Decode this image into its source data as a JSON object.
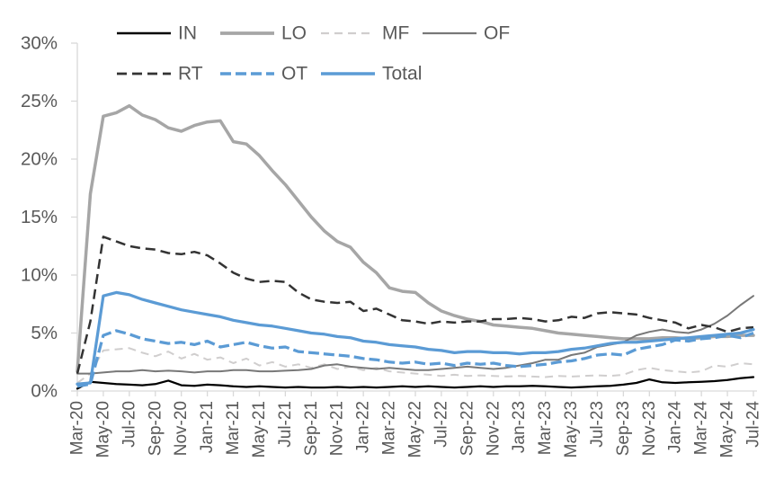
{
  "chart_data": {
    "type": "line",
    "title": "",
    "xlabel": "",
    "ylabel": "",
    "ylim": [
      0,
      30
    ],
    "grid": false,
    "legend_position": "top",
    "y_tick_labels": [
      "0%",
      "5%",
      "10%",
      "15%",
      "20%",
      "25%",
      "30%"
    ],
    "x_tick_labels": [
      "Mar-20",
      "May-20",
      "Jul-20",
      "Sep-20",
      "Nov-20",
      "Jan-21",
      "Mar-21",
      "May-21",
      "Jul-21",
      "Sep-21",
      "Nov-21",
      "Jan-22",
      "Mar-22",
      "May-22",
      "Jul-22",
      "Sep-22",
      "Nov-22",
      "Jan-23",
      "Mar-23",
      "May-23",
      "Jul-23",
      "Sep-23",
      "Nov-23",
      "Jan-24",
      "Mar-24",
      "May-24",
      "Jul-24"
    ],
    "x_months_per_tick": 2,
    "x_points_total": 53,
    "colors": {
      "axis": "#d9d9d9",
      "tick": "#d9d9d9",
      "label_text": "#595959",
      "blue": "#5b9bd5",
      "gray": "#a6a6a6",
      "light_gray": "#d0cece",
      "dark_gray": "#787878",
      "near_black": "#333333",
      "black": "#000000"
    },
    "series": [
      {
        "name": "IN",
        "color": "#000000",
        "style": "solid",
        "dash": "",
        "width": 2.25,
        "values": [
          0.2,
          0.8,
          0.7,
          0.6,
          0.55,
          0.5,
          0.6,
          0.9,
          0.5,
          0.45,
          0.55,
          0.5,
          0.4,
          0.35,
          0.4,
          0.35,
          0.3,
          0.35,
          0.3,
          0.3,
          0.35,
          0.3,
          0.35,
          0.3,
          0.35,
          0.4,
          0.35,
          0.4,
          0.35,
          0.3,
          0.35,
          0.4,
          0.35,
          0.4,
          0.4,
          0.45,
          0.4,
          0.35,
          0.3,
          0.35,
          0.4,
          0.45,
          0.55,
          0.7,
          1.0,
          0.75,
          0.7,
          0.75,
          0.8,
          0.85,
          0.95,
          1.1,
          1.2
        ]
      },
      {
        "name": "LO",
        "color": "#a6a6a6",
        "style": "solid",
        "dash": "",
        "width": 3.5,
        "values": [
          1.7,
          17.0,
          23.7,
          24.0,
          24.6,
          23.8,
          23.4,
          22.7,
          22.4,
          22.9,
          23.2,
          23.3,
          21.5,
          21.3,
          20.3,
          19.0,
          17.8,
          16.4,
          15.0,
          13.8,
          12.9,
          12.4,
          11.1,
          10.2,
          8.9,
          8.6,
          8.5,
          7.6,
          6.9,
          6.5,
          6.2,
          6.0,
          5.7,
          5.6,
          5.5,
          5.4,
          5.2,
          5.0,
          4.9,
          4.8,
          4.7,
          4.6,
          4.5,
          4.5,
          4.5,
          4.6,
          4.6,
          4.5,
          4.6,
          4.7,
          4.7,
          4.8,
          4.8
        ]
      },
      {
        "name": "MF",
        "color": "#d0cece",
        "style": "dashed",
        "dash": "9 6",
        "width": 2,
        "values": [
          0.7,
          1.5,
          3.5,
          3.6,
          3.7,
          3.3,
          3.0,
          3.4,
          2.8,
          3.2,
          2.7,
          2.9,
          2.4,
          2.8,
          2.2,
          2.5,
          2.1,
          2.3,
          2.0,
          2.3,
          1.9,
          2.1,
          1.8,
          2.0,
          1.7,
          1.6,
          1.5,
          1.4,
          1.3,
          1.4,
          1.3,
          1.35,
          1.3,
          1.25,
          1.3,
          1.25,
          1.2,
          1.3,
          1.25,
          1.3,
          1.35,
          1.3,
          1.4,
          1.8,
          2.0,
          1.8,
          1.7,
          1.6,
          1.7,
          2.2,
          2.1,
          2.4,
          2.3
        ]
      },
      {
        "name": "OF",
        "color": "#787878",
        "style": "solid",
        "dash": "",
        "width": 2,
        "values": [
          1.5,
          1.5,
          1.6,
          1.7,
          1.7,
          1.8,
          1.7,
          1.75,
          1.7,
          1.6,
          1.7,
          1.7,
          1.8,
          1.8,
          1.7,
          1.7,
          1.75,
          1.8,
          1.9,
          2.2,
          2.3,
          2.1,
          2.0,
          1.9,
          2.0,
          1.9,
          1.8,
          1.8,
          1.9,
          2.0,
          2.1,
          2.0,
          1.9,
          2.0,
          2.2,
          2.4,
          2.7,
          2.7,
          3.1,
          3.3,
          3.8,
          4.0,
          4.2,
          4.8,
          5.1,
          5.3,
          5.1,
          5.0,
          5.3,
          5.8,
          6.5,
          7.4,
          8.2
        ]
      },
      {
        "name": "RT",
        "color": "#333333",
        "style": "dashed",
        "dash": "11 6",
        "width": 2.5,
        "values": [
          1.5,
          6.0,
          13.3,
          12.9,
          12.5,
          12.3,
          12.2,
          11.9,
          11.8,
          12.0,
          11.7,
          11.0,
          10.2,
          9.7,
          9.4,
          9.5,
          9.4,
          8.5,
          7.9,
          7.7,
          7.6,
          7.7,
          6.9,
          7.1,
          6.6,
          6.1,
          6.0,
          5.8,
          6.0,
          5.9,
          6.0,
          6.0,
          6.2,
          6.2,
          6.3,
          6.2,
          6.0,
          6.1,
          6.4,
          6.3,
          6.7,
          6.8,
          6.7,
          6.6,
          6.3,
          6.1,
          5.9,
          5.4,
          5.7,
          5.5,
          5.1,
          5.4,
          5.5
        ]
      },
      {
        "name": "OT",
        "color": "#5b9bd5",
        "style": "dashed",
        "dash": "12 5",
        "width": 3.25,
        "values": [
          0.4,
          0.6,
          4.8,
          5.2,
          4.9,
          4.5,
          4.3,
          4.1,
          4.2,
          4.0,
          4.3,
          3.8,
          4.0,
          4.2,
          3.9,
          3.7,
          3.8,
          3.4,
          3.3,
          3.2,
          3.1,
          3.0,
          2.8,
          2.7,
          2.5,
          2.4,
          2.5,
          2.3,
          2.4,
          2.2,
          2.4,
          2.3,
          2.4,
          2.2,
          2.1,
          2.2,
          2.3,
          2.5,
          2.6,
          2.8,
          3.1,
          3.2,
          3.1,
          3.6,
          3.8,
          4.0,
          4.4,
          4.3,
          4.5,
          4.6,
          4.8,
          4.6,
          5.0
        ]
      },
      {
        "name": "Total",
        "color": "#5b9bd5",
        "style": "solid",
        "dash": "",
        "width": 3.25,
        "values": [
          0.6,
          0.7,
          8.2,
          8.5,
          8.3,
          7.9,
          7.6,
          7.3,
          7.0,
          6.8,
          6.6,
          6.4,
          6.1,
          5.9,
          5.7,
          5.6,
          5.4,
          5.2,
          5.0,
          4.9,
          4.7,
          4.6,
          4.3,
          4.2,
          4.0,
          3.9,
          3.8,
          3.6,
          3.5,
          3.3,
          3.4,
          3.4,
          3.3,
          3.3,
          3.2,
          3.3,
          3.3,
          3.4,
          3.6,
          3.7,
          3.9,
          4.1,
          4.2,
          4.2,
          4.3,
          4.4,
          4.5,
          4.6,
          4.7,
          4.8,
          4.9,
          5.0,
          5.3
        ]
      }
    ],
    "legend": {
      "rows": [
        [
          "IN",
          "LO",
          "MF",
          "OF"
        ],
        [
          "RT",
          "OT",
          "Total"
        ]
      ]
    }
  }
}
